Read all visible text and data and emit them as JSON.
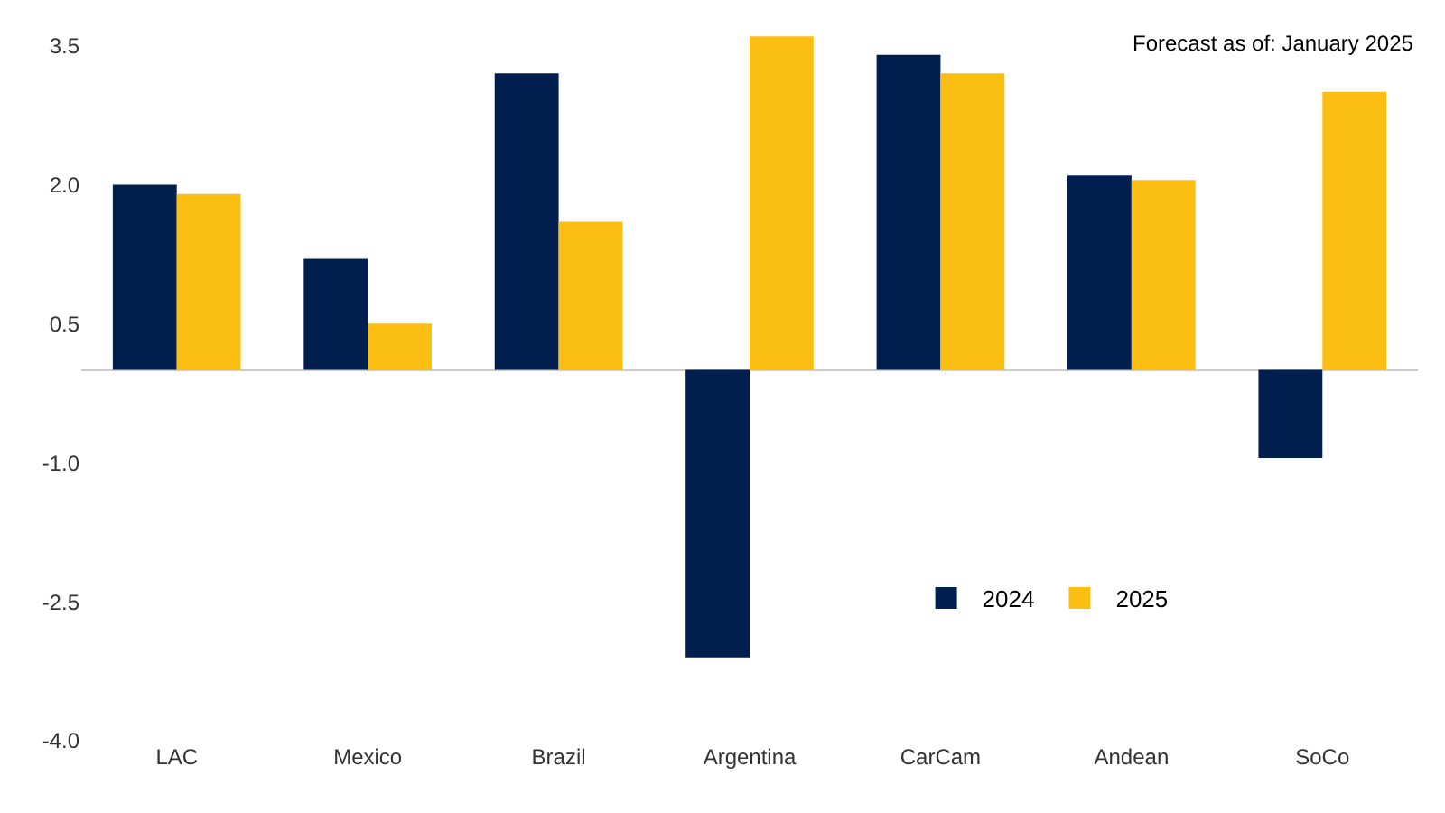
{
  "chart_data": {
    "type": "bar",
    "categories": [
      "LAC",
      "Mexico",
      "Brazil",
      "Argentina",
      "CarCam",
      "Andean",
      "SoCo"
    ],
    "series": [
      {
        "name": "2024",
        "color": "#001f4e",
        "values": [
          2.0,
          1.2,
          3.2,
          -3.1,
          3.4,
          2.1,
          -0.95
        ]
      },
      {
        "name": "2025",
        "color": "#fbbf14",
        "values": [
          1.9,
          0.5,
          1.6,
          3.6,
          3.2,
          2.05,
          3.0
        ]
      }
    ],
    "ylim": [
      -4,
      3.7
    ],
    "yticks": [
      {
        "value": 3.5,
        "label": "3.5"
      },
      {
        "value": 2,
        "label": "2.0"
      },
      {
        "value": 0.5,
        "label": "0.5"
      },
      {
        "value": -1,
        "label": "-1.0"
      },
      {
        "value": -2.5,
        "label": "-2.5"
      },
      {
        "value": -4,
        "label": "-4.0"
      }
    ],
    "grid": false,
    "legend": "bottom right",
    "annotations": [
      "Forecast as of: January 2025"
    ]
  }
}
